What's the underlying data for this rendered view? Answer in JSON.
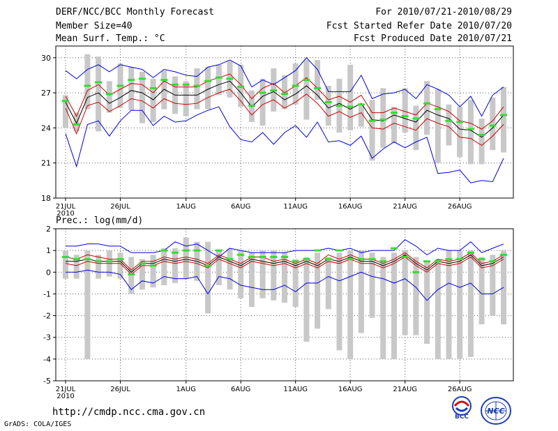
{
  "header": {
    "title": "DERF/NCC/BCC Monthly Forecast",
    "member_size": "Member Size=40",
    "variable": "Mean Surf. Temp.: °C",
    "period": "For 2010/07/21-2010/08/29",
    "started": "Fcst Started Refer Date 2010/07/20",
    "produced": "Fcst Produced Date 2010/07/21"
  },
  "footer": {
    "url": "http://cmdp.ncc.cma.gov.cn",
    "grads": "GrADS: COLA/IGES",
    "logo_bcc": "BCC",
    "logo_ncc": "NCC"
  },
  "colors": {
    "max_line": "#0000dd",
    "min_line": "#0000dd",
    "mean_line": "#000000",
    "spread_line": "#cc0000",
    "obs_marker": "#33dd33",
    "box": "#c8c8c8",
    "grid": "#555555"
  },
  "chart_data": [
    {
      "type": "line",
      "title": "Mean Surf. Temp.: °C",
      "ylim": [
        18,
        31
      ],
      "yticks": [
        18,
        21,
        24,
        27,
        30
      ],
      "xticks": [
        {
          "day": 1,
          "label": "21JUL",
          "sub": "2010"
        },
        {
          "day": 6,
          "label": "26JUL"
        },
        {
          "day": 12,
          "label": "1AUG"
        },
        {
          "day": 17,
          "label": "6AUG"
        },
        {
          "day": 22,
          "label": "11AUG"
        },
        {
          "day": 27,
          "label": "16AUG"
        },
        {
          "day": 32,
          "label": "21AUG"
        },
        {
          "day": 37,
          "label": "26AUG"
        }
      ],
      "series": [
        {
          "name": "max",
          "values": [
            28.9,
            28.2,
            29.0,
            29.4,
            28.8,
            29.4,
            29.2,
            29.0,
            28.3,
            29.0,
            28.8,
            28.5,
            28.4,
            29.2,
            29.4,
            29.8,
            29.3,
            27.5,
            28.1,
            27.7,
            28.3,
            28.9,
            30.0,
            29.0,
            27.1,
            27.1,
            27.1,
            28.5,
            26.5,
            26.9,
            27.0,
            27.3,
            26.5,
            27.7,
            27.3,
            26.8,
            25.8,
            26.7,
            25.0,
            26.8,
            27.5
          ]
        },
        {
          "name": "spread_upper",
          "values": [
            26.7,
            25.0,
            27.2,
            27.7,
            26.8,
            27.3,
            27.8,
            27.7,
            27.0,
            28.0,
            27.5,
            27.5,
            27.5,
            28.0,
            28.3,
            28.6,
            27.7,
            26.5,
            27.4,
            27.8,
            27.0,
            27.6,
            28.3,
            27.4,
            26.4,
            26.7,
            26.2,
            26.8,
            25.3,
            25.3,
            25.7,
            25.4,
            25.1,
            26.1,
            25.8,
            25.4,
            24.6,
            24.4,
            23.9,
            24.6,
            25.8
          ]
        },
        {
          "name": "mean",
          "values": [
            26.2,
            24.4,
            26.6,
            27.0,
            26.1,
            26.6,
            27.2,
            27.0,
            26.4,
            27.3,
            26.8,
            26.8,
            26.8,
            27.3,
            27.7,
            28.0,
            27.0,
            25.8,
            26.7,
            27.1,
            26.4,
            26.9,
            27.6,
            26.8,
            25.7,
            26.1,
            25.6,
            26.1,
            24.7,
            24.6,
            25.1,
            24.8,
            24.5,
            25.5,
            25.1,
            24.8,
            23.9,
            23.8,
            23.2,
            24.0,
            25.1
          ]
        },
        {
          "name": "spread_lower",
          "values": [
            25.7,
            23.5,
            25.9,
            26.2,
            25.4,
            25.9,
            26.5,
            26.3,
            25.7,
            26.5,
            26.1,
            26.0,
            26.1,
            26.6,
            27.0,
            27.3,
            26.3,
            25.1,
            26.0,
            26.4,
            25.7,
            26.2,
            26.9,
            26.1,
            25.0,
            25.4,
            24.9,
            25.3,
            24.0,
            23.9,
            24.4,
            24.1,
            23.8,
            24.8,
            24.4,
            24.1,
            23.2,
            23.1,
            22.5,
            23.3,
            24.3
          ]
        },
        {
          "name": "min",
          "values": [
            23.5,
            20.7,
            24.3,
            24.6,
            23.3,
            24.6,
            25.5,
            25.5,
            24.2,
            25.0,
            24.5,
            24.6,
            25.1,
            25.5,
            25.8,
            24.1,
            23.0,
            22.8,
            23.6,
            22.6,
            23.6,
            24.2,
            23.2,
            24.5,
            22.8,
            22.9,
            22.5,
            23.3,
            21.4,
            22.2,
            22.8,
            22.3,
            22.8,
            23.2,
            20.1,
            20.2,
            20.4,
            19.3,
            19.5,
            19.4,
            21.4
          ]
        },
        {
          "name": "box_high",
          "values": [
            26.8,
            25.3,
            30.3,
            30.1,
            28.0,
            29.5,
            29.2,
            28.8,
            28.2,
            28.9,
            28.4,
            28.0,
            29.1,
            29.2,
            29.4,
            29.7,
            29.4,
            27.2,
            28.2,
            29.1,
            28.5,
            29.5,
            29.8,
            29.8,
            27.6,
            28.2,
            29.4,
            25.9,
            26.4,
            27.4,
            25.8,
            27.4,
            25.9,
            28.0,
            27.3,
            26.0,
            25.8,
            26.4,
            24.8,
            26.6,
            27.5
          ]
        },
        {
          "name": "box_low",
          "values": [
            24.0,
            23.7,
            25.6,
            23.7,
            25.3,
            25.7,
            25.5,
            24.4,
            24.5,
            25.6,
            25.2,
            25.0,
            25.6,
            25.6,
            26.8,
            26.6,
            25.8,
            24.5,
            24.2,
            25.4,
            25.6,
            26.0,
            24.7,
            26.4,
            24.2,
            23.6,
            23.8,
            24.1,
            21.2,
            22.3,
            22.7,
            23.6,
            22.1,
            23.4,
            21.0,
            22.5,
            21.5,
            20.9,
            20.9,
            22.1,
            21.9
          ]
        },
        {
          "name": "obs",
          "values": [
            26.3,
            24.3,
            27.6,
            27.9,
            26.9,
            27.6,
            28.1,
            28.2,
            27.4,
            28.1,
            27.7,
            27.7,
            27.6,
            28.0,
            28.3,
            28.2,
            27.5,
            25.9,
            27.0,
            27.2,
            26.9,
            27.6,
            28.1,
            27.4,
            26.2,
            25.9,
            25.8,
            26.0,
            24.6,
            24.7,
            25.3,
            25.0,
            24.8,
            26.1,
            25.6,
            24.6,
            24.5,
            23.9,
            23.4,
            24.2,
            25.1
          ]
        }
      ]
    },
    {
      "type": "line",
      "title": "Prec.: log(mm/d)",
      "ylim": [
        -5,
        2
      ],
      "yticks": [
        -5,
        -4,
        -3,
        -2,
        -1,
        0,
        1,
        2
      ],
      "xticks": [
        {
          "day": 1,
          "label": "21JUL",
          "sub": "2010"
        },
        {
          "day": 6,
          "label": "26JUL"
        },
        {
          "day": 12,
          "label": "1AUG"
        },
        {
          "day": 17,
          "label": "6AUG"
        },
        {
          "day": 22,
          "label": "11AUG"
        },
        {
          "day": 27,
          "label": "16AUG"
        },
        {
          "day": 32,
          "label": "21AUG"
        },
        {
          "day": 37,
          "label": "26AUG"
        }
      ],
      "series": [
        {
          "name": "max",
          "values": [
            1.2,
            1.2,
            1.3,
            1.3,
            1.2,
            1.2,
            0.9,
            0.9,
            0.9,
            1.0,
            1.4,
            1.2,
            1.3,
            1.0,
            0.7,
            1.1,
            1.0,
            0.9,
            0.9,
            0.9,
            0.9,
            1.0,
            1.0,
            1.0,
            1.1,
            1.0,
            1.1,
            0.9,
            1.0,
            1.0,
            1.0,
            1.5,
            1.2,
            0.8,
            1.1,
            1.0,
            1.0,
            1.4,
            0.9,
            1.1,
            1.3
          ]
        },
        {
          "name": "spread_upper",
          "values": [
            0.7,
            0.6,
            0.8,
            0.7,
            0.6,
            0.6,
            0.1,
            0.5,
            0.5,
            0.7,
            0.6,
            0.7,
            0.6,
            0.4,
            0.8,
            0.6,
            0.4,
            0.7,
            0.7,
            0.5,
            0.6,
            0.4,
            0.6,
            0.4,
            0.8,
            0.6,
            0.8,
            0.6,
            0.6,
            0.4,
            0.6,
            0.9,
            0.5,
            0.2,
            0.6,
            0.5,
            0.6,
            0.9,
            0.4,
            0.5,
            0.8
          ]
        },
        {
          "name": "mean",
          "values": [
            0.5,
            0.5,
            0.6,
            0.5,
            0.5,
            0.5,
            0.0,
            0.4,
            0.4,
            0.6,
            0.5,
            0.6,
            0.5,
            0.3,
            0.7,
            0.5,
            0.3,
            0.6,
            0.5,
            0.4,
            0.5,
            0.3,
            0.5,
            0.3,
            0.6,
            0.5,
            0.7,
            0.5,
            0.5,
            0.3,
            0.5,
            0.8,
            0.4,
            0.1,
            0.5,
            0.4,
            0.5,
            0.8,
            0.3,
            0.4,
            0.7
          ]
        },
        {
          "name": "spread_lower",
          "values": [
            0.4,
            0.3,
            0.5,
            0.4,
            0.4,
            0.4,
            -0.1,
            0.3,
            0.3,
            0.5,
            0.4,
            0.5,
            0.4,
            0.2,
            0.6,
            0.4,
            0.2,
            0.5,
            0.4,
            0.3,
            0.4,
            0.2,
            0.4,
            0.2,
            0.5,
            0.4,
            0.6,
            0.4,
            0.4,
            0.2,
            0.4,
            0.7,
            0.3,
            0.0,
            0.4,
            0.3,
            0.4,
            0.7,
            0.2,
            0.3,
            0.6
          ]
        },
        {
          "name": "min",
          "values": [
            0.0,
            0.0,
            0.1,
            0.0,
            0.0,
            -0.1,
            -0.8,
            -0.4,
            -0.5,
            -0.2,
            -0.3,
            -0.3,
            -0.2,
            -1.0,
            -0.2,
            -0.3,
            -0.6,
            -0.7,
            -0.8,
            -0.8,
            -0.6,
            -0.9,
            -0.5,
            -0.5,
            -0.2,
            -0.4,
            -0.2,
            0.0,
            -0.2,
            -0.3,
            -0.5,
            -0.3,
            -0.7,
            -1.3,
            -0.8,
            -0.5,
            -0.7,
            -0.5,
            -1.0,
            -1.0,
            -0.7
          ]
        },
        {
          "name": "box_high",
          "values": [
            1.0,
            0.8,
            1.0,
            0.8,
            1.0,
            0.9,
            0.7,
            0.6,
            0.8,
            1.1,
            1.1,
            1.6,
            1.4,
            1.4,
            1.0,
            1.1,
            1.0,
            0.9,
            1.0,
            1.0,
            0.9,
            0.6,
            0.7,
            0.9,
            0.7,
            0.9,
            1.0,
            1.0,
            0.9,
            0.7,
            0.9,
            1.0,
            0.7,
            0.5,
            0.6,
            1.0,
            1.0,
            1.0,
            0.7,
            0.8,
            1.0
          ]
        },
        {
          "name": "box_low",
          "values": [
            -0.3,
            -0.3,
            -4.0,
            -0.3,
            -0.2,
            -0.3,
            -1.0,
            -0.8,
            -0.7,
            -0.6,
            -0.5,
            -0.3,
            -0.4,
            -1.9,
            -0.6,
            -0.8,
            -1.2,
            -1.6,
            -1.2,
            -1.3,
            -1.4,
            -1.6,
            -3.2,
            -2.6,
            -1.7,
            -3.6,
            -4.0,
            -2.8,
            -2.1,
            -4.0,
            -4.0,
            -2.9,
            -2.9,
            -3.3,
            -4.0,
            -4.0,
            -4.0,
            -3.9,
            -2.4,
            -2.0,
            -2.4
          ]
        },
        {
          "name": "obs",
          "values": [
            0.7,
            0.6,
            0.6,
            0.5,
            0.5,
            0.6,
            -0.1,
            0.4,
            0.3,
            1.0,
            0.9,
            1.0,
            1.0,
            0.3,
            1.0,
            0.6,
            0.8,
            0.7,
            0.7,
            0.7,
            0.7,
            0.5,
            0.6,
            1.0,
            0.6,
            1.0,
            0.6,
            0.6,
            0.6,
            0.5,
            1.1,
            0.7,
            0.0,
            0.5,
            0.5,
            0.6,
            0.6,
            0.9,
            0.6,
            0.5,
            0.8
          ]
        }
      ]
    }
  ]
}
